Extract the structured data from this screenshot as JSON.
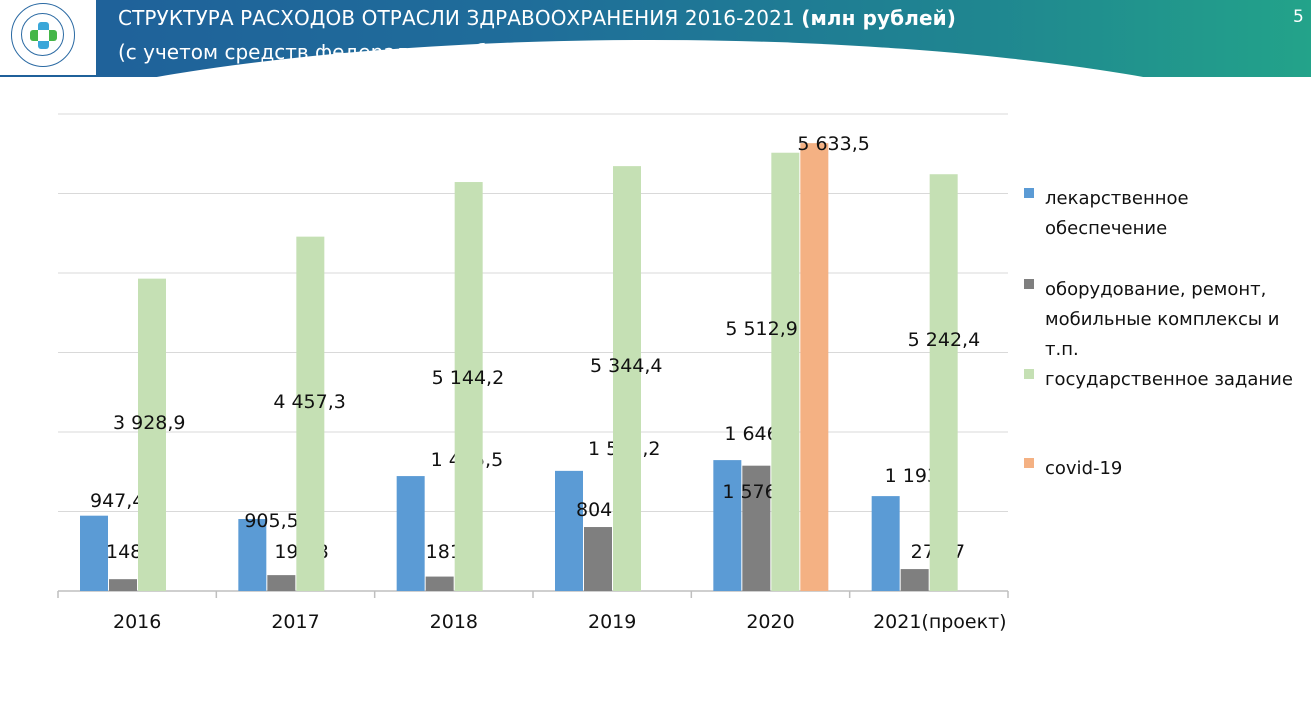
{
  "header": {
    "title_main": "СТРУКТУРА РАСХОДОВ ОТРАСЛИ ЗДРАВООХРАНЕНИЯ 2016-2021",
    "title_unit": "(млн рублей)",
    "subtitle": "(с учетом средств федерального бюджета)",
    "slide_number": "5"
  },
  "colors": {
    "medicines": "#5b9bd5",
    "equipment": "#7f7f7f",
    "state_task": "#c5e0b4",
    "covid": "#f4b183"
  },
  "chart_data": {
    "type": "bar",
    "categories": [
      "2016",
      "2017",
      "2018",
      "2019",
      "2020",
      "2021(проект)"
    ],
    "ylim": [
      0,
      6000
    ],
    "series": [
      {
        "key": "medicines",
        "name": "лекарственное обеспечение",
        "values": [
          947.4,
          905.5,
          1445.5,
          1511.2,
          1646.5,
          1193.6
        ],
        "labels": [
          "947,4",
          "905,5",
          "1 445,5",
          "1 511,2",
          "1 646,5",
          "1 193,6"
        ]
      },
      {
        "key": "equipment",
        "name": "оборудование, ремонт, мобильные комплексы и т.п.",
        "values": [
          148.8,
          199.8,
          181.4,
          804.6,
          1576.3,
          275.7
        ],
        "labels": [
          "148,8",
          "199,8",
          "181,4",
          "804,6",
          "1 576,3",
          "275,7"
        ]
      },
      {
        "key": "state_task",
        "name": "государственное задание",
        "values": [
          3928.9,
          4457.3,
          5144.2,
          5344.4,
          5512.9,
          5242.4
        ],
        "labels": [
          "3 928,9",
          "4 457,3",
          "5 144,2",
          "5 344,4",
          "5 512,9",
          "5 242,4"
        ]
      },
      {
        "key": "covid",
        "name": "covid-19",
        "values": [
          null,
          null,
          null,
          null,
          5633.5,
          null
        ],
        "labels": [
          null,
          null,
          null,
          null,
          "5 633,5",
          null
        ]
      }
    ],
    "legend": {
      "position": "right",
      "entries": [
        {
          "key": "medicines",
          "lines": [
            "лекарственное",
            "обеспечение"
          ]
        },
        {
          "key": "equipment",
          "lines": [
            "оборудование, ремонт,",
            "мобильные комплексы и",
            "т.п."
          ]
        },
        {
          "key": "state_task",
          "lines": [
            "государственное задание"
          ]
        },
        {
          "key": "covid",
          "lines": [
            "covid-19"
          ]
        }
      ]
    },
    "grid": true
  }
}
